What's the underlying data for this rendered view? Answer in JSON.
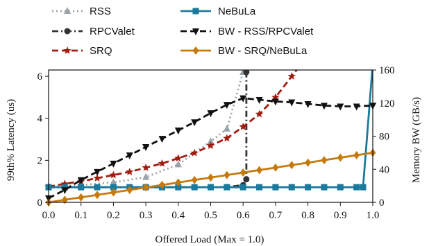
{
  "chart_data": {
    "type": "line",
    "xlabel": "Offered Load (Max = 1.0)",
    "ylabel": "99th% Latency (us)",
    "y2label": "Memory BW (GB/s)",
    "xlim": [
      0,
      1
    ],
    "ylim": [
      0,
      6.3
    ],
    "y2lim": [
      0,
      160
    ],
    "xticks": [
      "0.0",
      "0.1",
      "0.2",
      "0.3",
      "0.4",
      "0.5",
      "0.6",
      "0.7",
      "0.8",
      "0.9",
      "1.0"
    ],
    "yticks": [
      "0",
      "2",
      "4",
      "6"
    ],
    "y2ticks": [
      "0",
      "40",
      "80",
      "120",
      "160"
    ],
    "legend_position": "top",
    "series": [
      {
        "name": "RSS",
        "axis": "left",
        "color": "#9aa3a8",
        "dash": "dotted",
        "marker": "triangle-up",
        "x": [
          0.0,
          0.05,
          0.1,
          0.2,
          0.3,
          0.4,
          0.5,
          0.55,
          0.6
        ],
        "y": [
          0.75,
          0.78,
          0.82,
          0.95,
          1.2,
          1.8,
          2.9,
          3.5,
          6.2
        ]
      },
      {
        "name": "RPCValet",
        "axis": "left",
        "color": "#333333",
        "dash": "dashdot",
        "marker": "circle",
        "x": [
          0.0,
          0.05,
          0.1,
          0.2,
          0.3,
          0.4,
          0.5,
          0.55,
          0.6,
          0.61,
          0.61
        ],
        "y": [
          0.72,
          0.72,
          0.72,
          0.72,
          0.72,
          0.72,
          0.72,
          0.73,
          0.82,
          1.1,
          6.2
        ]
      },
      {
        "name": "SRQ",
        "axis": "left",
        "color": "#a01c10",
        "dash": "dashed",
        "marker": "star",
        "x": [
          0.0,
          0.05,
          0.1,
          0.15,
          0.2,
          0.25,
          0.3,
          0.35,
          0.4,
          0.45,
          0.5,
          0.55,
          0.6,
          0.65,
          0.7,
          0.75,
          0.78
        ],
        "y": [
          0.75,
          0.88,
          1.0,
          1.15,
          1.3,
          1.45,
          1.65,
          1.85,
          2.1,
          2.35,
          2.7,
          3.05,
          3.6,
          4.2,
          5.0,
          6.0,
          6.6
        ]
      },
      {
        "name": "NeBuLa",
        "axis": "left",
        "color": "#1b7a9c",
        "dash": "solid",
        "marker": "square",
        "x": [
          0.0,
          0.05,
          0.1,
          0.15,
          0.2,
          0.25,
          0.3,
          0.35,
          0.4,
          0.45,
          0.5,
          0.55,
          0.6,
          0.65,
          0.7,
          0.75,
          0.8,
          0.85,
          0.9,
          0.95,
          0.97,
          1.0
        ],
        "y": [
          0.72,
          0.72,
          0.72,
          0.72,
          0.72,
          0.72,
          0.72,
          0.72,
          0.72,
          0.72,
          0.72,
          0.72,
          0.72,
          0.72,
          0.72,
          0.72,
          0.72,
          0.72,
          0.72,
          0.72,
          0.72,
          6.6
        ]
      },
      {
        "name": "BW - RSS/RPCValet",
        "axis": "right",
        "color": "#111111",
        "dash": "dashed",
        "marker": "triangle-down",
        "x": [
          0.0,
          0.05,
          0.1,
          0.15,
          0.2,
          0.25,
          0.3,
          0.35,
          0.4,
          0.45,
          0.5,
          0.55,
          0.6,
          0.65,
          0.7,
          0.75,
          0.8,
          0.85,
          0.9,
          0.95,
          1.0
        ],
        "y": [
          5,
          15,
          27,
          37,
          47,
          57,
          67,
          77,
          87,
          97,
          108,
          118,
          126,
          124,
          122,
          121,
          119,
          117,
          116,
          116,
          117
        ]
      },
      {
        "name": "BW - SRQ/NeBuLa",
        "axis": "right",
        "color": "#c67a0e",
        "dash": "solid",
        "marker": "diamond",
        "x": [
          0.0,
          0.05,
          0.1,
          0.15,
          0.2,
          0.25,
          0.3,
          0.35,
          0.4,
          0.45,
          0.5,
          0.55,
          0.6,
          0.65,
          0.7,
          0.75,
          0.8,
          0.85,
          0.9,
          0.95,
          1.0
        ],
        "y": [
          0,
          3,
          6,
          9,
          12,
          15,
          18,
          21,
          24,
          27,
          30,
          33,
          36,
          39,
          42,
          45,
          48,
          51,
          54,
          57,
          60
        ]
      }
    ]
  }
}
